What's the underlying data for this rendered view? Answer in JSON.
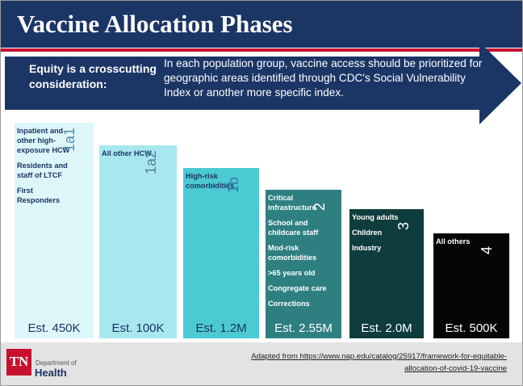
{
  "title": "Vaccine Allocation Phases",
  "equity": {
    "label": "Equity is a crosscutting consideration:",
    "text": "In each population group, vaccine access should be prioritized for geographic areas identified through CDC's Social Vulnerability Index or another more specific index."
  },
  "phases": [
    {
      "id": "1a1",
      "items": [
        "Inpatient and other high-exposure HCW",
        "Residents and staff of LTCF",
        "First Responders"
      ],
      "estimate": "Est. 450K",
      "color": "#ddf6f9",
      "num_color": "#5a8fb0",
      "text_color": "#1b3565"
    },
    {
      "id": "1a2",
      "items": [
        "All other HCW"
      ],
      "estimate": "Est. 100K",
      "color": "#a9e7ee",
      "num_color": "#4a86a8",
      "text_color": "#1b3565"
    },
    {
      "id": "1b",
      "items": [
        "High-risk comorbidities"
      ],
      "estimate": "Est. 1.2M",
      "color": "#4ccad4",
      "num_color": "#3a78a0",
      "text_color": "#1b3565"
    },
    {
      "id": "2",
      "items": [
        "Critical infrastructure",
        "School and childcare staff",
        "Mod-risk comorbidities",
        ">65 years old",
        "Congregate care",
        "Corrections"
      ],
      "estimate": "Est. 2.55M",
      "color": "#2e7f80",
      "num_color": "#ffffff",
      "text_color": "#ffffff"
    },
    {
      "id": "3",
      "items": [
        "Young adults",
        "Children",
        "Industry"
      ],
      "estimate": "Est. 2.0M",
      "color": "#0f3c3c",
      "num_color": "#ffffff",
      "text_color": "#ffffff"
    },
    {
      "id": "4",
      "items": [
        "All others"
      ],
      "estimate": "Est. 500K",
      "color": "#050505",
      "num_color": "#ffffff",
      "text_color": "#ffffff"
    }
  ],
  "footer": {
    "logo_abbr": "TN",
    "logo_dept": "Department of",
    "logo_health": "Health",
    "source": "Adapted from https://www.nap.edu/catalog/25917/framework-for-equitable-allocation-of-covid-19-vaccine"
  },
  "colors": {
    "navy": "#1b3565",
    "red": "#c8102e"
  }
}
